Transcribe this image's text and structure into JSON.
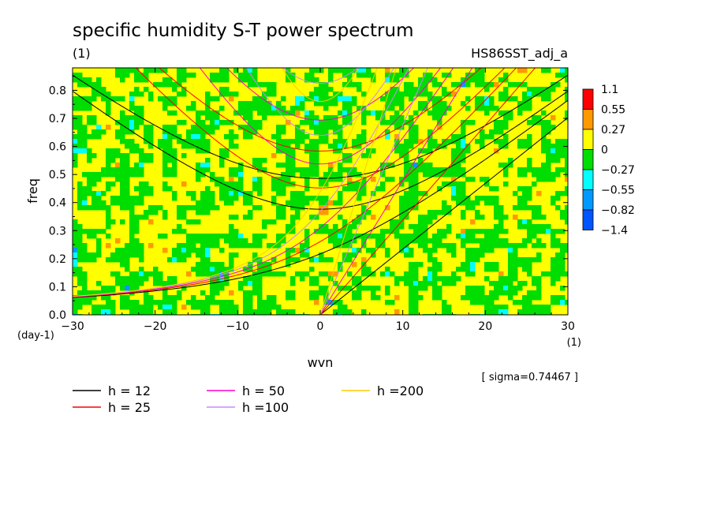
{
  "chart_data": {
    "type": "heatmap",
    "title": "specific humidity S-T power spectrum",
    "subtitle": "(1)",
    "dataset": "HS86SST_adj_a",
    "xlabel": "wvn",
    "ylabel": "freq",
    "x_unit": "(1)",
    "y_unit": "(day-1)",
    "xlim": [
      -30,
      30
    ],
    "ylim": [
      0,
      0.88
    ],
    "x_ticks": [
      -30,
      -20,
      -10,
      0,
      10,
      20,
      30
    ],
    "y_ticks": [
      0.0,
      0.1,
      0.2,
      0.3,
      0.4,
      0.5,
      0.6,
      0.7,
      0.8
    ],
    "x_tick_labels": [
      "-30",
      "-20",
      "-10",
      "0",
      "10",
      "20",
      "30"
    ],
    "y_tick_labels": [
      "0.0",
      "0.1",
      "0.2",
      "0.3",
      "0.4",
      "0.5",
      "0.6",
      "0.7",
      "0.8"
    ],
    "sigma_note": "[ sigma=0.74467 ]",
    "colorbar": {
      "levels": [
        "1.1",
        "0.55",
        "0.27",
        "0",
        "-0.27",
        "-0.55",
        "-0.82",
        "-1.4"
      ],
      "colors": [
        "#ff0000",
        "#ff9900",
        "#ffff00",
        "#00dd00",
        "#00ffff",
        "#0099ff",
        "#0055ff"
      ]
    },
    "field_note": "noisy field dominated by yellow (0 to 0.27) and green (-0.27 to 0), with scattered small orange and cyan/blue spots",
    "curves": [
      {
        "label": "h = 12",
        "h": 12,
        "color": "#000000"
      },
      {
        "label": "h = 25",
        "h": 25,
        "color": "#ff0000"
      },
      {
        "label": "h = 50",
        "h": 50,
        "color": "#ff00cc"
      },
      {
        "label": "h =100",
        "h": 100,
        "color": "#cc88ff"
      },
      {
        "label": "h =200",
        "h": 200,
        "color": "#ffcc00"
      }
    ]
  }
}
